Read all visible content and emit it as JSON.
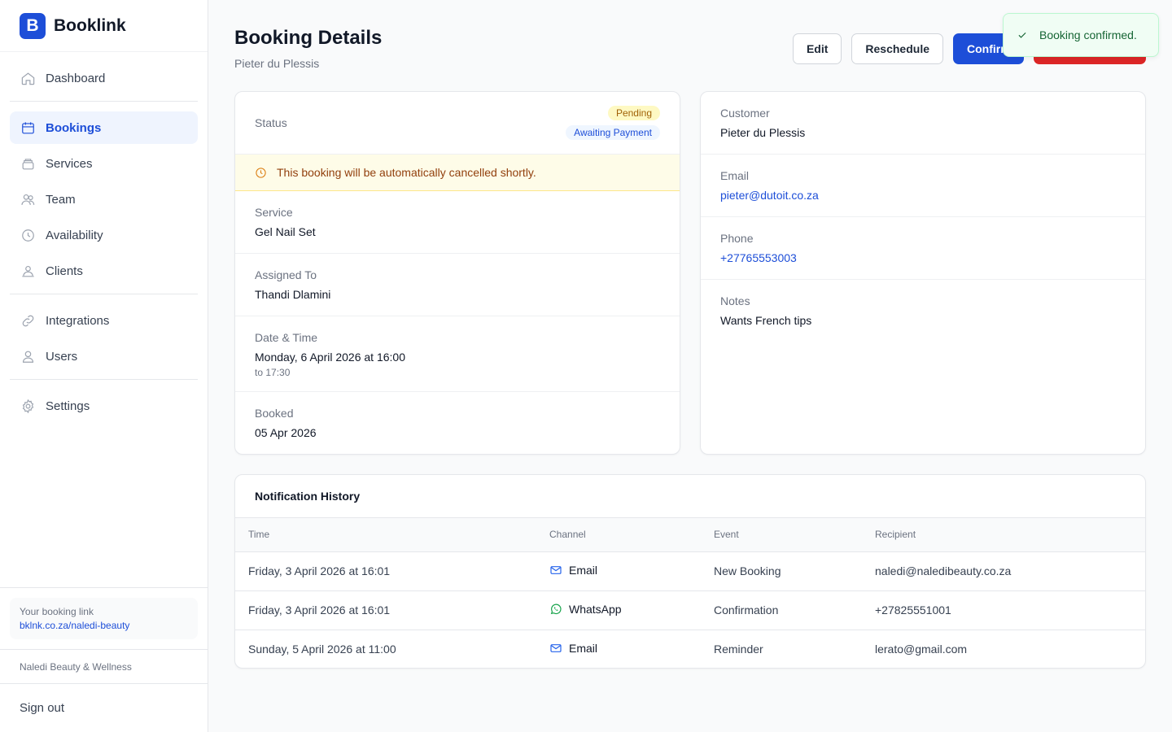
{
  "brand": {
    "logo_letter": "B",
    "name": "Booklink"
  },
  "sidebar": {
    "items": [
      {
        "label": "Dashboard",
        "icon": "home-icon"
      },
      {
        "label": "Bookings",
        "icon": "calendar-icon",
        "active": true
      },
      {
        "label": "Services",
        "icon": "layers-icon"
      },
      {
        "label": "Team",
        "icon": "team-icon"
      },
      {
        "label": "Availability",
        "icon": "clock-icon"
      },
      {
        "label": "Clients",
        "icon": "clients-icon"
      },
      {
        "label": "Integrations",
        "icon": "link-icon"
      },
      {
        "label": "Users",
        "icon": "user-icon"
      },
      {
        "label": "Settings",
        "icon": "gear-icon"
      }
    ],
    "booking_link_label": "Your booking link",
    "booking_link_url": "bklnk.co.za/naledi-beauty",
    "org_name": "Naledi Beauty & Wellness",
    "sign_out": "Sign out"
  },
  "header": {
    "title": "Booking Details",
    "subtitle": "Pieter du Plessis",
    "edit_label": "Edit",
    "reschedule_label": "Reschedule",
    "confirm_label": "Confirm",
    "danger_label": ""
  },
  "toast": {
    "message": "Booking confirmed."
  },
  "details": {
    "status_label": "Status",
    "badge_pending": "Pending",
    "badge_payment": "Awaiting Payment",
    "warning": "This booking will be automatically cancelled shortly.",
    "service_label": "Service",
    "service_value": "Gel Nail Set",
    "assigned_label": "Assigned To",
    "assigned_value": "Thandi Dlamini",
    "datetime_label": "Date & Time",
    "datetime_value": "Monday, 6 April 2026 at 16:00",
    "datetime_end": "to 17:30",
    "booked_label": "Booked",
    "booked_value": "05 Apr 2026"
  },
  "customer": {
    "customer_label": "Customer",
    "customer_value": "Pieter du Plessis",
    "email_label": "Email",
    "email_value": "pieter@dutoit.co.za",
    "phone_label": "Phone",
    "phone_value": "+27765553003",
    "notes_label": "Notes",
    "notes_value": "Wants French tips"
  },
  "notifications": {
    "title": "Notification History",
    "columns": [
      "Time",
      "Channel",
      "Event",
      "Recipient"
    ],
    "rows": [
      {
        "time": "Friday, 3 April 2026 at 16:01",
        "channel": "Email",
        "channel_icon": "mail-icon",
        "event": "New Booking",
        "recipient": "naledi@naledibeauty.co.za"
      },
      {
        "time": "Friday, 3 April 2026 at 16:01",
        "channel": "WhatsApp",
        "channel_icon": "whatsapp-icon",
        "event": "Confirmation",
        "recipient": "+27825551001"
      },
      {
        "time": "Sunday, 5 April 2026 at 11:00",
        "channel": "Email",
        "channel_icon": "mail-icon",
        "event": "Reminder",
        "recipient": "lerato@gmail.com"
      }
    ]
  },
  "colors": {
    "primary": "#1d4ed8",
    "danger": "#dc2626",
    "warning_bg": "#fefce8",
    "success_bg": "#f0fdf4"
  }
}
